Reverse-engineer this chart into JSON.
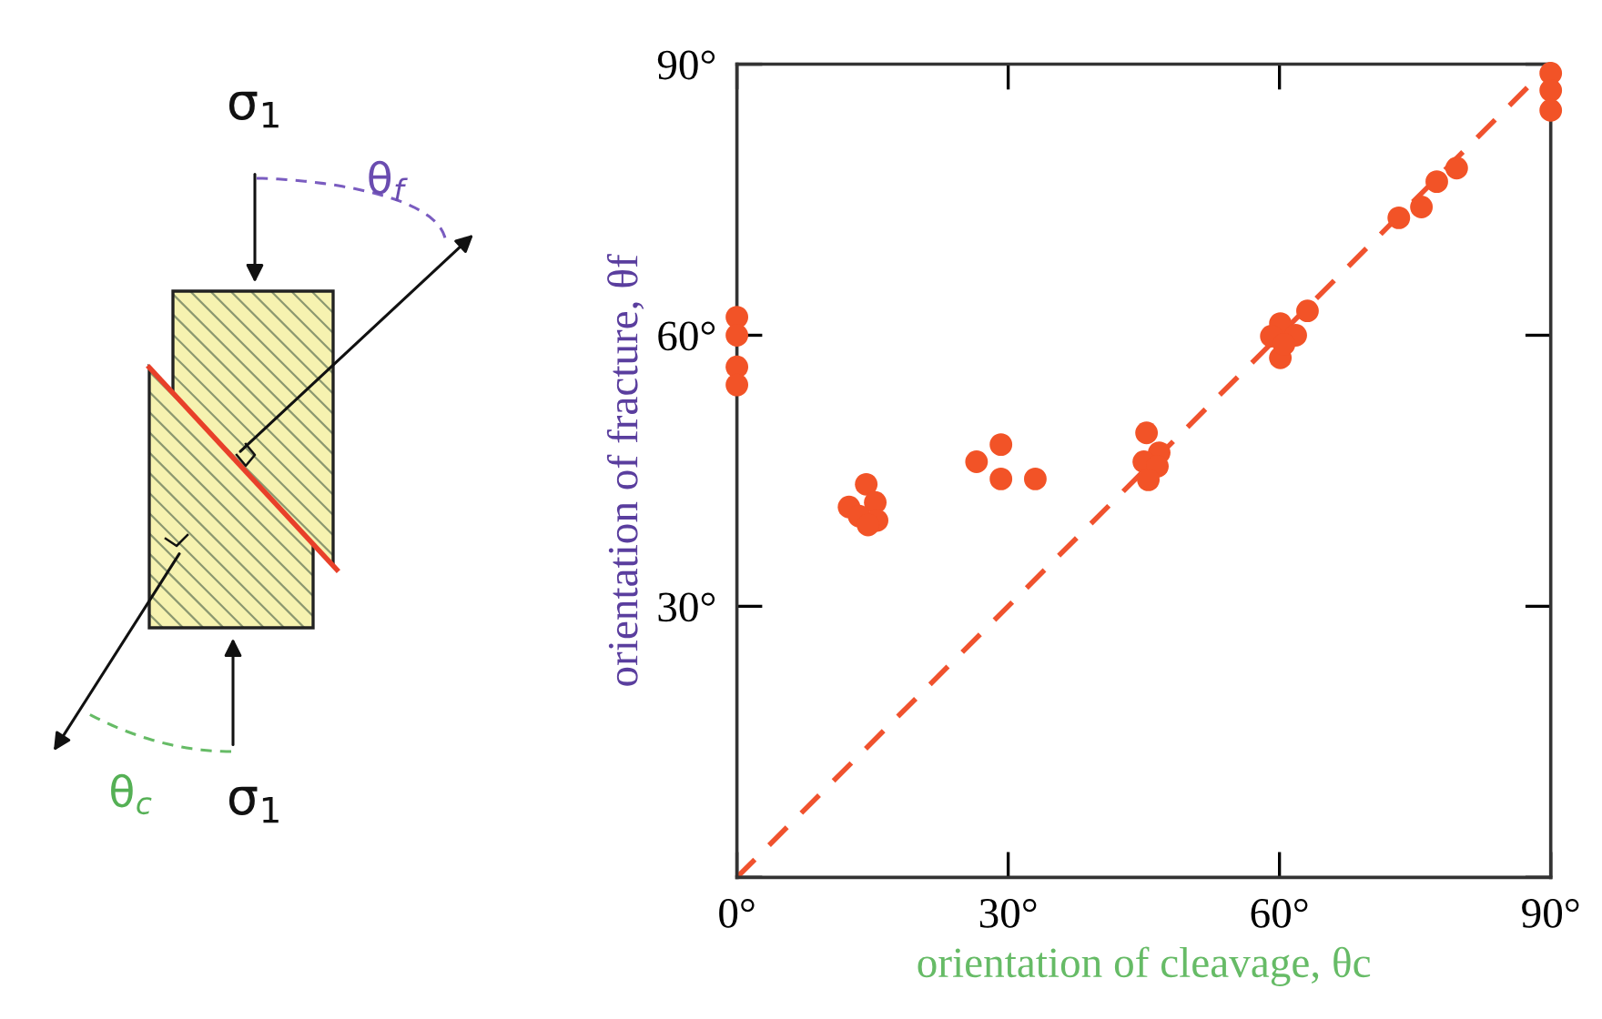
{
  "chart_data": {
    "type": "scatter",
    "xlabel": "orientation of cleavage, θc",
    "ylabel": "orientation of fracture, θf",
    "xlim": [
      0,
      90
    ],
    "ylim": [
      0,
      90
    ],
    "xticks": [
      {
        "value": 0,
        "label": "0°"
      },
      {
        "value": 30,
        "label": "30°"
      },
      {
        "value": 60,
        "label": "60°"
      },
      {
        "value": 90,
        "label": "90°"
      }
    ],
    "yticks": [
      {
        "value": 0,
        "label": null
      },
      {
        "value": 30,
        "label": "30°"
      },
      {
        "value": 60,
        "label": "60°"
      },
      {
        "value": 90,
        "label": "90°"
      }
    ],
    "grid": false,
    "series": [
      {
        "type": "line",
        "color": "#f0522e",
        "line_style": "dashed",
        "marker": "none",
        "x": [
          0,
          90
        ],
        "values": [
          0,
          90
        ]
      },
      {
        "marker": "circle",
        "color": "#f25327",
        "x": [
          0,
          0,
          0,
          0,
          12.4,
          14.3,
          15.3,
          13.5,
          15.5,
          14.5,
          26.5,
          29.2,
          29.2,
          33,
          45.3,
          46.7,
          45,
          46.5,
          45.5,
          60.1,
          59.1,
          61.8,
          60.1,
          63.1,
          60.5,
          73.2,
          75.7,
          77.4,
          79.6,
          90,
          90,
          90
        ],
        "values": [
          62,
          60,
          56.5,
          54.5,
          41,
          43.5,
          41.5,
          40,
          39.5,
          39,
          46,
          47.9,
          44.1,
          44.1,
          49.2,
          47,
          46,
          45.5,
          44,
          61.3,
          59.9,
          60,
          57.5,
          62.7,
          59,
          73,
          74.2,
          77,
          78.5,
          89,
          87.1,
          84.9
        ]
      }
    ],
    "annotations": [
      "σ$_{1}$",
      "σ$_{1}$",
      "θ$_{f}$",
      "θ$_{c}$"
    ]
  }
}
